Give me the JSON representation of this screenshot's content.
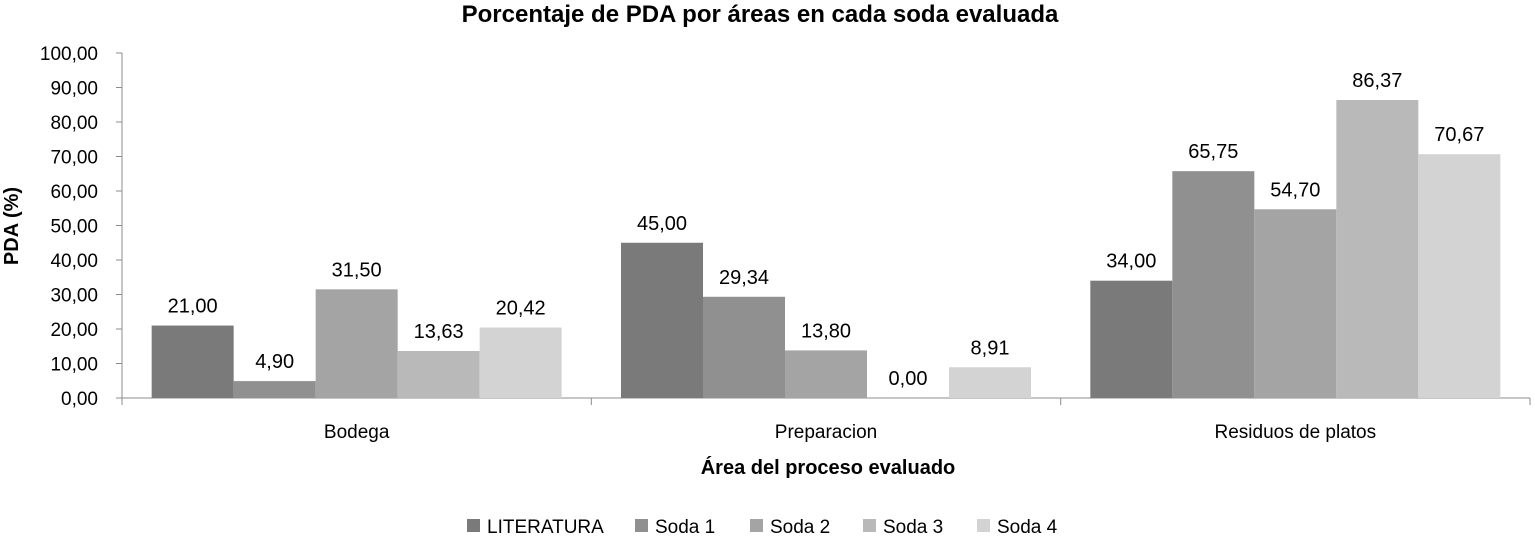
{
  "chart_data": {
    "type": "bar",
    "title": "Porcentaje de PDA por áreas en cada soda evaluada",
    "xlabel": "Área del proceso evaluado",
    "ylabel": "PDA (%)",
    "ylim": [
      0,
      100
    ],
    "y_ticks": [
      "0,00",
      "10,00",
      "20,00",
      "30,00",
      "40,00",
      "50,00",
      "60,00",
      "70,00",
      "80,00",
      "90,00",
      "100,00"
    ],
    "y_tick_values": [
      0,
      10,
      20,
      30,
      40,
      50,
      60,
      70,
      80,
      90,
      100
    ],
    "grid": false,
    "legend_position": "bottom",
    "categories": [
      "Bodega",
      "Preparacion",
      "Residuos de platos"
    ],
    "series": [
      {
        "name": "LITERATURA",
        "color": "#7a7a7a",
        "values": [
          21.0,
          45.0,
          34.0
        ],
        "labels": [
          "21,00",
          "45,00",
          "34,00"
        ]
      },
      {
        "name": "Soda 1",
        "color": "#909090",
        "values": [
          4.9,
          29.34,
          65.75
        ],
        "labels": [
          "4,90",
          "29,34",
          "65,75"
        ]
      },
      {
        "name": "Soda 2",
        "color": "#a4a4a4",
        "values": [
          31.5,
          13.8,
          54.7
        ],
        "labels": [
          "31,50",
          "13,80",
          "54,70"
        ]
      },
      {
        "name": "Soda 3",
        "color": "#b9b9b9",
        "values": [
          13.63,
          0.0,
          86.37
        ],
        "labels": [
          "13,63",
          "0,00",
          "86,37"
        ]
      },
      {
        "name": "Soda 4",
        "color": "#d3d3d3",
        "values": [
          20.42,
          8.91,
          70.67
        ],
        "labels": [
          "20,42",
          "8,91",
          "70,67"
        ]
      }
    ]
  }
}
